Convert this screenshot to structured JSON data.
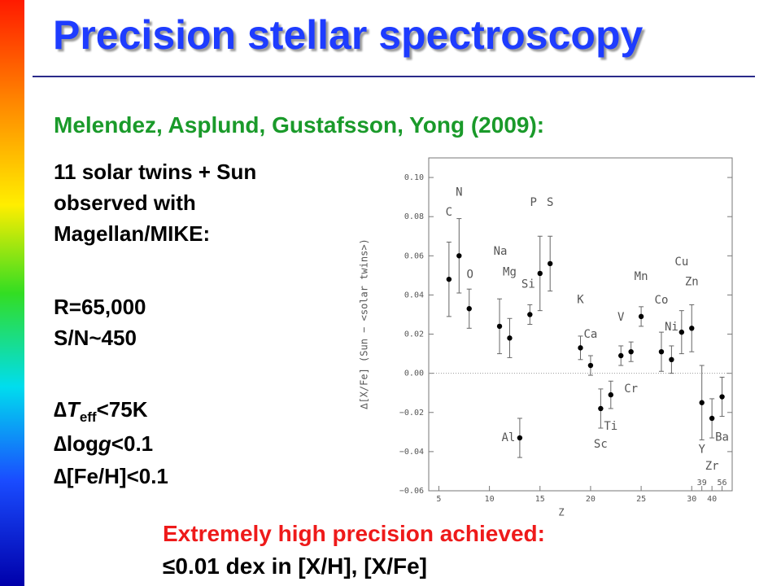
{
  "slide": {
    "title": "Precision stellar spectroscopy",
    "reference": "Melendez, Asplund, Gustafsson, Yong (2009):",
    "lines": [
      "11 solar twins + Sun",
      "observed with",
      "Magellan/MIKE:",
      "R=65,000",
      "S/N~450"
    ],
    "teff": [
      "∆",
      "T",
      "eff",
      "<75K"
    ],
    "logg": [
      "∆log",
      "g",
      "<0.1"
    ],
    "feh": "∆[Fe/H]<0.1",
    "conclusion": [
      "Extremely high precision achieved:",
      "≤0.01 dex in [X/H], [X/Fe]"
    ]
  },
  "chart_data": {
    "type": "errorbar",
    "xlabel": "Z",
    "ylabel": "∆[X/Fe] (Sun − <solar twins>)",
    "categories": [
      "C",
      "N",
      "O",
      "Na",
      "Mg",
      "Al",
      "Si",
      "P",
      "S",
      "K",
      "Ca",
      "Sc",
      "Ti",
      "V",
      "Cr",
      "Mn",
      "Co",
      "Ni",
      "Cu",
      "Zn",
      "Y",
      "Zr",
      "Ba"
    ],
    "x": [
      6,
      7,
      8,
      11,
      12,
      13,
      14,
      15,
      16,
      19,
      20,
      21,
      22,
      23,
      24,
      25,
      27,
      28,
      29,
      30,
      39,
      40,
      56
    ],
    "values": [
      0.048,
      0.06,
      0.033,
      0.024,
      0.018,
      -0.033,
      0.03,
      0.051,
      0.056,
      0.013,
      0.004,
      -0.018,
      -0.011,
      0.009,
      0.011,
      0.029,
      0.011,
      0.007,
      0.021,
      0.023,
      -0.015,
      -0.023,
      -0.012
    ],
    "errors": [
      0.019,
      0.019,
      0.01,
      0.014,
      0.01,
      0.01,
      0.005,
      0.019,
      0.014,
      0.006,
      0.005,
      0.01,
      0.007,
      0.005,
      0.005,
      0.005,
      0.01,
      0.007,
      0.011,
      0.012,
      0.019,
      0.01,
      0.01
    ],
    "color": "#000000",
    "xlim": [
      4,
      72
    ],
    "xticks": [
      5,
      10,
      15,
      20,
      25,
      30,
      39,
      40,
      56
    ],
    "ylim": [
      -0.06,
      0.11
    ],
    "yticks": [
      {
        "value": 0.1,
        "label": "0.10"
      },
      {
        "value": 0.08,
        "label": "0.08"
      },
      {
        "value": 0.06,
        "label": "0.06"
      },
      {
        "value": 0.04,
        "label": "0.04"
      },
      {
        "value": 0.02,
        "label": "0.02"
      },
      {
        "value": 0,
        "label": "0.00"
      },
      {
        "value": -0.02,
        "label": "−0.02"
      },
      {
        "value": -0.04,
        "label": "−0.04"
      },
      {
        "value": -0.06,
        "label": "−0.06"
      }
    ],
    "zero_line": true
  }
}
